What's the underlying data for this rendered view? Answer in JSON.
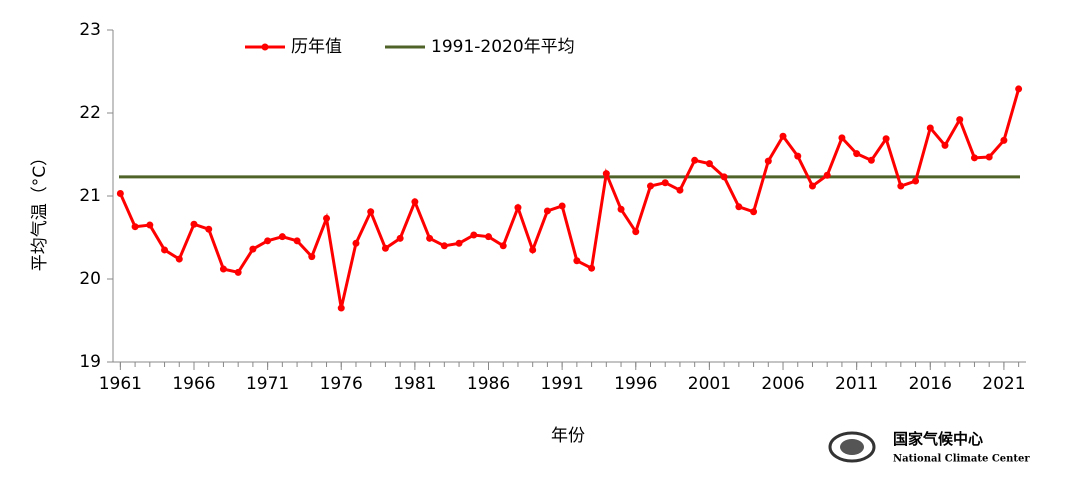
{
  "chart_data": {
    "type": "line",
    "x_label": "年份",
    "y_label": "平均气温（°C）",
    "x": [
      1961,
      1962,
      1963,
      1964,
      1965,
      1966,
      1967,
      1968,
      1969,
      1970,
      1971,
      1972,
      1973,
      1974,
      1975,
      1976,
      1977,
      1978,
      1979,
      1980,
      1981,
      1982,
      1983,
      1984,
      1985,
      1986,
      1987,
      1988,
      1989,
      1990,
      1991,
      1992,
      1993,
      1994,
      1995,
      1996,
      1997,
      1998,
      1999,
      2000,
      2001,
      2002,
      2003,
      2004,
      2005,
      2006,
      2007,
      2008,
      2009,
      2010,
      2011,
      2012,
      2013,
      2014,
      2015,
      2016,
      2017,
      2018,
      2019,
      2020,
      2021,
      2022
    ],
    "series": [
      {
        "name": "历年值",
        "color": "#ff0000",
        "values": [
          21.03,
          20.63,
          20.65,
          20.35,
          20.24,
          20.66,
          20.6,
          20.12,
          20.08,
          20.36,
          20.46,
          20.51,
          20.46,
          20.27,
          20.73,
          19.65,
          20.43,
          20.81,
          20.37,
          20.49,
          20.93,
          20.49,
          20.4,
          20.43,
          20.53,
          20.51,
          20.4,
          20.86,
          20.35,
          20.82,
          20.88,
          20.22,
          20.13,
          21.27,
          20.84,
          20.57,
          21.12,
          21.16,
          21.07,
          21.43,
          21.39,
          21.23,
          20.87,
          20.81,
          21.42,
          21.72,
          21.48,
          21.12,
          21.25,
          21.7,
          21.51,
          21.43,
          21.69,
          21.12,
          21.18,
          21.82,
          21.61,
          21.92,
          21.46,
          21.47,
          21.67,
          22.29
        ]
      }
    ],
    "reference_lines": [
      {
        "name": "1991-2020年平均",
        "value": 21.23,
        "color": "#4f6228"
      }
    ],
    "xlim": [
      1960.5,
      2022.5
    ],
    "xticks": [
      1961,
      1966,
      1971,
      1976,
      1981,
      1986,
      1991,
      1996,
      2001,
      2006,
      2011,
      2016,
      2021
    ],
    "ylim": [
      19,
      23
    ],
    "yticks": [
      19,
      20,
      21,
      22,
      23
    ],
    "legend": "top",
    "source": {
      "name": "国家气候中心",
      "name_en": "National Climate Center"
    }
  }
}
